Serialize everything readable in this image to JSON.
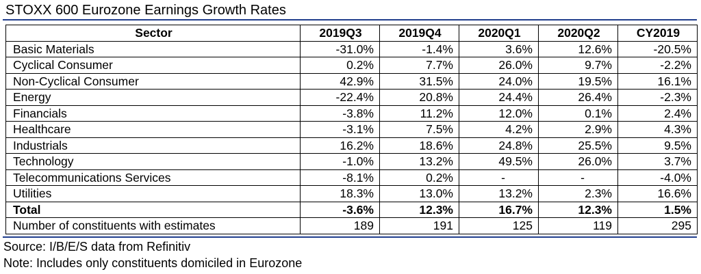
{
  "title": "STOXX 600 Eurozone Earnings Growth Rates",
  "table": {
    "headers": [
      "Sector",
      "2019Q3",
      "2019Q4",
      "2020Q1",
      "2020Q2",
      "CY2019"
    ],
    "rows": [
      {
        "sector": "Basic Materials",
        "values": [
          "-31.0%",
          "-1.4%",
          "3.6%",
          "12.6%",
          "-20.5%"
        ]
      },
      {
        "sector": "Cyclical Consumer",
        "values": [
          "0.2%",
          "7.7%",
          "26.0%",
          "9.7%",
          "-2.2%"
        ]
      },
      {
        "sector": "Non-Cyclical Consumer",
        "values": [
          "42.9%",
          "31.5%",
          "24.0%",
          "19.5%",
          "16.1%"
        ]
      },
      {
        "sector": "Energy",
        "values": [
          "-22.4%",
          "20.8%",
          "24.4%",
          "26.4%",
          "-2.3%"
        ]
      },
      {
        "sector": "Financials",
        "values": [
          "-3.8%",
          "11.2%",
          "12.0%",
          "0.1%",
          "2.4%"
        ]
      },
      {
        "sector": "Healthcare",
        "values": [
          "-3.1%",
          "7.5%",
          "4.2%",
          "2.9%",
          "4.3%"
        ]
      },
      {
        "sector": "Industrials",
        "values": [
          "16.2%",
          "18.6%",
          "24.8%",
          "25.5%",
          "9.5%"
        ]
      },
      {
        "sector": "Technology",
        "values": [
          "-1.0%",
          "13.2%",
          "49.5%",
          "26.0%",
          "3.7%"
        ]
      },
      {
        "sector": "Telecommunications Services",
        "values": [
          "-8.1%",
          "0.2%",
          "-",
          "-",
          "-4.0%"
        ]
      },
      {
        "sector": "Utilities",
        "values": [
          "18.3%",
          "13.0%",
          "13.2%",
          "2.3%",
          "16.6%"
        ]
      }
    ],
    "total": {
      "sector": "Total",
      "values": [
        "-3.6%",
        "12.3%",
        "16.7%",
        "12.3%",
        "1.5%"
      ]
    },
    "constituents": {
      "sector": "Number of constituents with estimates",
      "values": [
        "189",
        "191",
        "125",
        "119",
        "295"
      ]
    }
  },
  "source": "Source: I/B/E/S data from Refinitiv",
  "note": "Note: Includes only constituents domiciled in Eurozone",
  "colors": {
    "rule": "#1f3d8c",
    "text": "#000000",
    "border": "#000000"
  }
}
